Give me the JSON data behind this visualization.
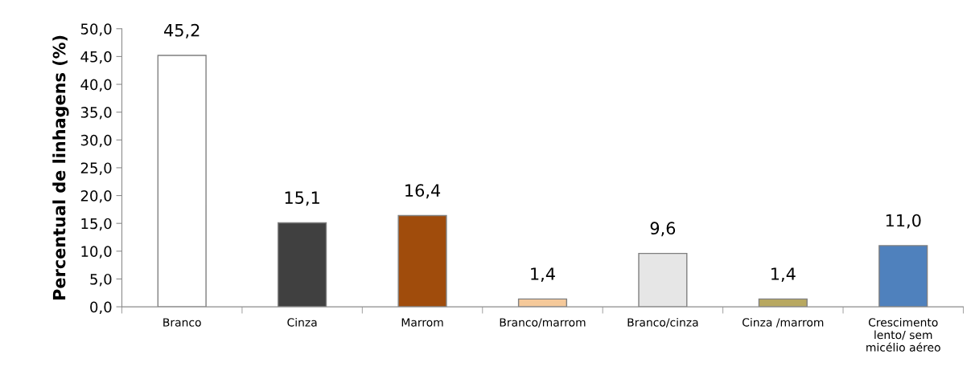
{
  "chart_data": {
    "type": "bar",
    "ylabel": "Percentual de linhagens (%)",
    "categories": [
      "Branco",
      "Cinza",
      "Marrom",
      "Branco/marrom",
      "Branco/cinza",
      "Cinza /marrom",
      "Crescimento\nlento/ sem\nmicélio aéreo"
    ],
    "values": [
      45.2,
      15.1,
      16.4,
      1.4,
      9.6,
      1.4,
      11.0
    ],
    "value_labels": [
      "45,2",
      "15,1",
      "16,4",
      "1,4",
      "9,6",
      "1,4",
      "11,0"
    ],
    "colors": [
      "#ffffff",
      "#404040",
      "#a04c0c",
      "#f5c99a",
      "#e6e6e6",
      "#b8a860",
      "#4f81bd"
    ],
    "ylim": [
      0,
      50
    ],
    "yticks": [
      {
        "value": 0,
        "label": "0,0"
      },
      {
        "value": 5,
        "label": "5,0"
      },
      {
        "value": 10,
        "label": "10,0"
      },
      {
        "value": 15,
        "label": "15,0"
      },
      {
        "value": 20,
        "label": "20,0"
      },
      {
        "value": 25,
        "label": "25,0"
      },
      {
        "value": 30,
        "label": "30,0"
      },
      {
        "value": 35,
        "label": "35,0"
      },
      {
        "value": 40,
        "label": "40,0"
      },
      {
        "value": 45,
        "label": "45,0"
      },
      {
        "value": 50,
        "label": "50,0"
      }
    ],
    "grid": false
  }
}
